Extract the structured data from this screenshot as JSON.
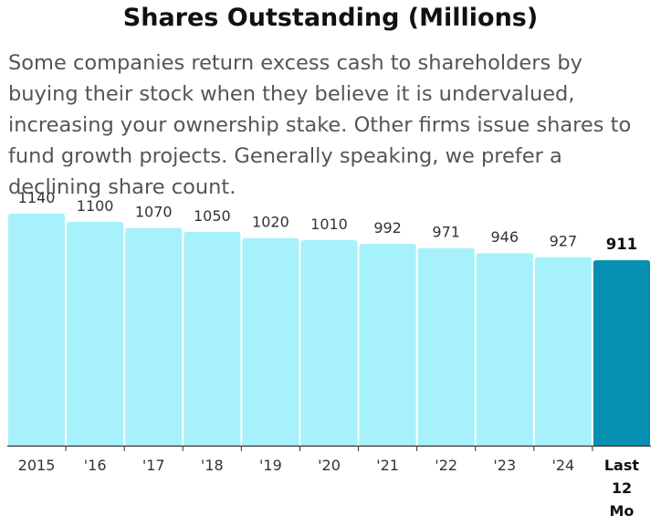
{
  "header": {
    "title": "Shares Outstanding (Millions)",
    "description": "Some companies return excess cash to shareholders by buying their stock when they believe it is undervalued, increasing your ownership stake. Other firms issue shares to fund growth projects. Generally speaking, we prefer a declining share count."
  },
  "colors": {
    "bar": "#a6f1fb",
    "highlight_bar": "#058fb1",
    "axis": "#333333",
    "label": "#333333"
  },
  "chart_data": {
    "type": "bar",
    "title": "Shares Outstanding (Millions)",
    "categories": [
      "2015",
      "'16",
      "'17",
      "'18",
      "'19",
      "'20",
      "'21",
      "'22",
      "'23",
      "'24",
      "Last 12 Mo"
    ],
    "values": [
      1140,
      1100,
      1070,
      1050,
      1020,
      1010,
      992,
      971,
      946,
      927,
      911
    ],
    "value_labels": [
      "1140",
      "1100",
      "1070",
      "1050",
      "1020",
      "1010",
      "992",
      "971",
      "946",
      "927",
      "911"
    ],
    "highlight_index": 10,
    "ylim": [
      0,
      1140
    ],
    "grid": false,
    "xlabel": "",
    "ylabel": ""
  }
}
